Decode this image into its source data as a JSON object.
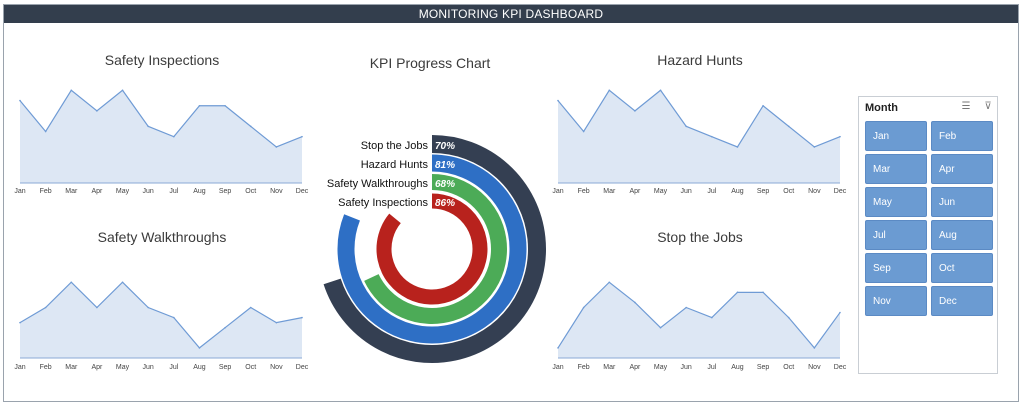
{
  "dashboard": {
    "title": "MONITORING KPI DASHBOARD"
  },
  "colors": {
    "banner": "#333e4d",
    "area_fill": "#dde7f4",
    "area_line": "#6f9bd5",
    "ring_dark": "#343f52",
    "ring_blue": "#2e6fc5",
    "ring_green": "#4cab57",
    "ring_red": "#b8221d",
    "slicer_button": "#6b9bd2"
  },
  "chart_data": [
    {
      "type": "area",
      "title": "Safety Inspections",
      "categories": [
        "Jan",
        "Feb",
        "Mar",
        "Apr",
        "May",
        "Jun",
        "Jul",
        "Aug",
        "Sep",
        "Oct",
        "Nov",
        "Dec"
      ],
      "values": [
        8,
        5,
        9,
        7,
        9,
        5.5,
        4.5,
        7.5,
        7.5,
        5.5,
        3.5,
        4.5
      ],
      "ylim": [
        0,
        10
      ]
    },
    {
      "type": "area",
      "title": "Hazard Hunts",
      "categories": [
        "Jan",
        "Feb",
        "Mar",
        "Apr",
        "May",
        "Jun",
        "Jul",
        "Aug",
        "Sep",
        "Oct",
        "Nov",
        "Dec"
      ],
      "values": [
        8,
        5,
        9,
        7,
        9,
        5.5,
        4.5,
        3.5,
        7.5,
        5.5,
        3.5,
        4.5
      ],
      "ylim": [
        0,
        10
      ]
    },
    {
      "type": "area",
      "title": "Safety Walkthroughs",
      "categories": [
        "Jan",
        "Feb",
        "Mar",
        "Apr",
        "May",
        "Jun",
        "Jul",
        "Aug",
        "Sep",
        "Oct",
        "Nov",
        "Dec"
      ],
      "values": [
        3.5,
        5,
        7.5,
        5,
        7.5,
        5,
        4,
        1,
        3,
        5,
        3.5,
        4
      ],
      "ylim": [
        0,
        10
      ]
    },
    {
      "type": "area",
      "title": "Stop the Jobs",
      "categories": [
        "Jan",
        "Feb",
        "Mar",
        "Apr",
        "May",
        "Jun",
        "Jul",
        "Aug",
        "Sep",
        "Oct",
        "Nov",
        "Dec"
      ],
      "values": [
        1,
        5,
        7.5,
        5.5,
        3,
        5,
        4,
        6.5,
        6.5,
        4,
        1,
        4.5
      ],
      "ylim": [
        0,
        10
      ]
    },
    {
      "type": "radial-bar",
      "title": "KPI Progress Chart",
      "series": [
        {
          "name": "Stop the Jobs",
          "value": 0.7,
          "label": "70%",
          "color": "#343f52"
        },
        {
          "name": "Hazard Hunts",
          "value": 0.81,
          "label": "81%",
          "color": "#2e6fc5"
        },
        {
          "name": "Safety Walkthroughs",
          "value": 0.68,
          "label": "68%",
          "color": "#4cab57"
        },
        {
          "name": "Safety Inspections",
          "value": 0.86,
          "label": "86%",
          "color": "#b8221d"
        }
      ]
    }
  ],
  "slicer": {
    "header": "Month",
    "multi_select_icon": "multi-select-icon",
    "clear_filter_icon": "clear-filter-icon",
    "items": [
      "Jan",
      "Feb",
      "Mar",
      "Apr",
      "May",
      "Jun",
      "Jul",
      "Aug",
      "Sep",
      "Oct",
      "Nov",
      "Dec"
    ]
  }
}
